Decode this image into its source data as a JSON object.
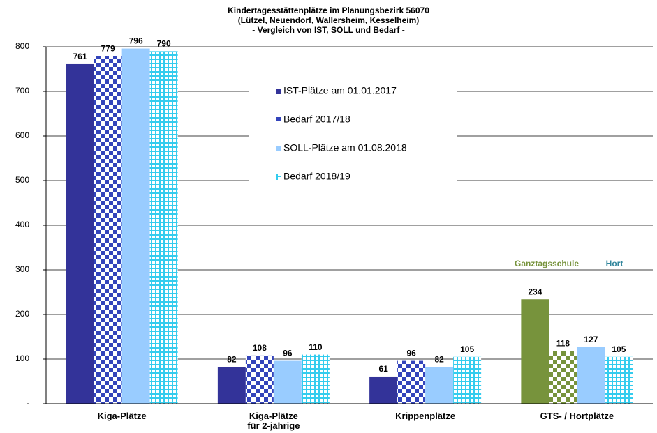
{
  "chart_data": {
    "type": "bar",
    "title": "Kindertagesstättenplätze im Planungsbezirk 56070\n(Lützel, Neuendorf, Wallersheim, Kesselheim)\n- Vergleich von IST, SOLL und Bedarf -",
    "categories": [
      "Kiga-Plätze",
      "Kiga-Plätze\nfür 2-jährige",
      "Krippenplätze",
      "GTS- / Hortplätze"
    ],
    "series": [
      {
        "name": "IST-Plätze am 01.01.2017",
        "color": "#333399",
        "pattern": "solid",
        "values": [
          761,
          82,
          61,
          234
        ],
        "point_colors": [
          null,
          null,
          null,
          "#77933c"
        ]
      },
      {
        "name": "Bedarf 2017/18",
        "color": "#3344bb",
        "pattern": "checker",
        "values": [
          779,
          108,
          96,
          118
        ],
        "point_colors": [
          null,
          null,
          null,
          "#77933c"
        ]
      },
      {
        "name": "SOLL-Plätze am 01.08.2018",
        "color": "#99ccff",
        "pattern": "solid",
        "values": [
          796,
          96,
          82,
          127
        ]
      },
      {
        "name": "Bedarf 2018/19",
        "color": "#33ccee",
        "pattern": "grid",
        "values": [
          790,
          110,
          105,
          105
        ]
      }
    ],
    "annotations": [
      {
        "text": "Ganztagsschule",
        "color": "#77933c"
      },
      {
        "text": "Hort",
        "color": "#31859c"
      }
    ],
    "ylim": [
      0,
      800
    ],
    "yticks": [
      {
        "value": 0,
        "label": "-"
      },
      100,
      200,
      300,
      400,
      500,
      600,
      700,
      800
    ],
    "grid": true,
    "legend": "top-center"
  }
}
